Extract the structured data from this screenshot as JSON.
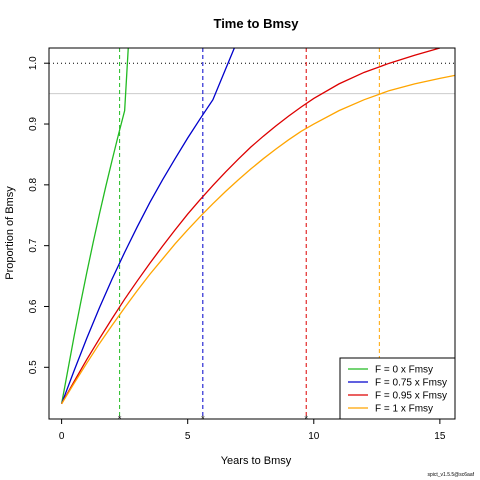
{
  "chart_data": {
    "type": "line",
    "title": "Time to Bmsy",
    "xlabel": "Years to Bmsy",
    "ylabel": "Proportion of Bmsy",
    "xlim": [
      -0.5,
      15.6
    ],
    "ylim": [
      0.415,
      1.025
    ],
    "xticks": [
      0,
      5,
      10,
      15
    ],
    "yticks": [
      0.5,
      0.6,
      0.7,
      0.8,
      0.9,
      1.0
    ],
    "ytick_labels": [
      "0.5",
      "0.6",
      "0.7",
      "0.8",
      "0.9",
      "1.0"
    ],
    "hlines": [
      {
        "y": 1.0,
        "style": "dotted",
        "color": "#000000"
      },
      {
        "y": 0.95,
        "style": "solid",
        "color": "#cccccc"
      }
    ],
    "legend_position": "bottom-right",
    "series": [
      {
        "name": "F = 0 x Fmsy",
        "color": "#22bb22",
        "vline": 2.3,
        "x": [
          0,
          0.25,
          0.5,
          0.75,
          1.0,
          1.25,
          1.5,
          1.75,
          2.0,
          2.25,
          2.5,
          2.65
        ],
        "y": [
          0.44,
          0.496,
          0.552,
          0.605,
          0.656,
          0.705,
          0.752,
          0.797,
          0.84,
          0.882,
          0.922,
          1.03
        ]
      },
      {
        "name": "F = 0.75 x Fmsy",
        "color": "#0000cc",
        "vline": 5.6,
        "x": [
          0,
          0.5,
          1,
          1.5,
          2,
          2.5,
          3,
          3.5,
          4,
          4.5,
          5,
          5.5,
          6,
          6.5,
          6.9
        ],
        "y": [
          0.44,
          0.495,
          0.548,
          0.598,
          0.645,
          0.689,
          0.731,
          0.771,
          0.808,
          0.843,
          0.877,
          0.909,
          0.94,
          0.99,
          1.03
        ]
      },
      {
        "name": "F = 0.95 x Fmsy",
        "color": "#dd0000",
        "vline": 9.7,
        "x": [
          0,
          0.5,
          1,
          1.5,
          2,
          2.5,
          3,
          3.5,
          4,
          4.5,
          5,
          5.5,
          6,
          6.5,
          7,
          7.5,
          8,
          8.5,
          9,
          9.5,
          10,
          11,
          12,
          13,
          14,
          15
        ],
        "y": [
          0.44,
          0.477,
          0.513,
          0.547,
          0.58,
          0.612,
          0.642,
          0.671,
          0.699,
          0.726,
          0.752,
          0.776,
          0.799,
          0.821,
          0.842,
          0.862,
          0.88,
          0.897,
          0.913,
          0.928,
          0.942,
          0.966,
          0.985,
          1.0,
          1.013,
          1.025
        ]
      },
      {
        "name": "F = 1 x Fmsy",
        "color": "#ffa500",
        "vline": 12.6,
        "x": [
          0,
          0.5,
          1,
          1.5,
          2,
          2.5,
          3,
          3.5,
          4,
          4.5,
          5,
          5.5,
          6,
          6.5,
          7,
          7.5,
          8,
          8.5,
          9,
          9.5,
          10,
          11,
          12,
          13,
          14,
          15,
          15.6
        ],
        "y": [
          0.44,
          0.474,
          0.507,
          0.539,
          0.569,
          0.598,
          0.626,
          0.653,
          0.678,
          0.703,
          0.726,
          0.748,
          0.769,
          0.789,
          0.808,
          0.826,
          0.843,
          0.859,
          0.874,
          0.888,
          0.9,
          0.922,
          0.94,
          0.955,
          0.966,
          0.975,
          0.98
        ]
      }
    ]
  },
  "footnote": "spict_v1.5.5@sc6aaf"
}
